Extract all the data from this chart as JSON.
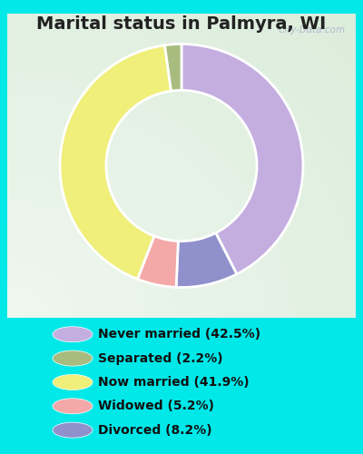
{
  "title": "Marital status in Palmyra, WI",
  "categories": [
    "Never married",
    "Separated",
    "Now married",
    "Widowed",
    "Divorced"
  ],
  "values": [
    42.5,
    2.2,
    41.9,
    5.2,
    8.2
  ],
  "colors": [
    "#c4aee0",
    "#a8bc80",
    "#efef7a",
    "#f4a8a8",
    "#9090cc"
  ],
  "legend_labels": [
    "Never married (42.5%)",
    "Separated (2.2%)",
    "Now married (41.9%)",
    "Widowed (5.2%)",
    "Divorced (8.2%)"
  ],
  "bg_outer": "#00e8e8",
  "bg_inner_color1": "#e8f5ee",
  "bg_inner_color2": "#c8e8d8",
  "watermark": "City-Data.com",
  "title_fontsize": 14,
  "legend_fontsize": 10,
  "figsize": [
    4.0,
    5.0
  ],
  "dpi": 100,
  "startangle": 90,
  "plot_order": [
    0,
    1,
    2,
    3,
    4
  ],
  "plot_order_indices": [
    0,
    2,
    3,
    4,
    1
  ]
}
